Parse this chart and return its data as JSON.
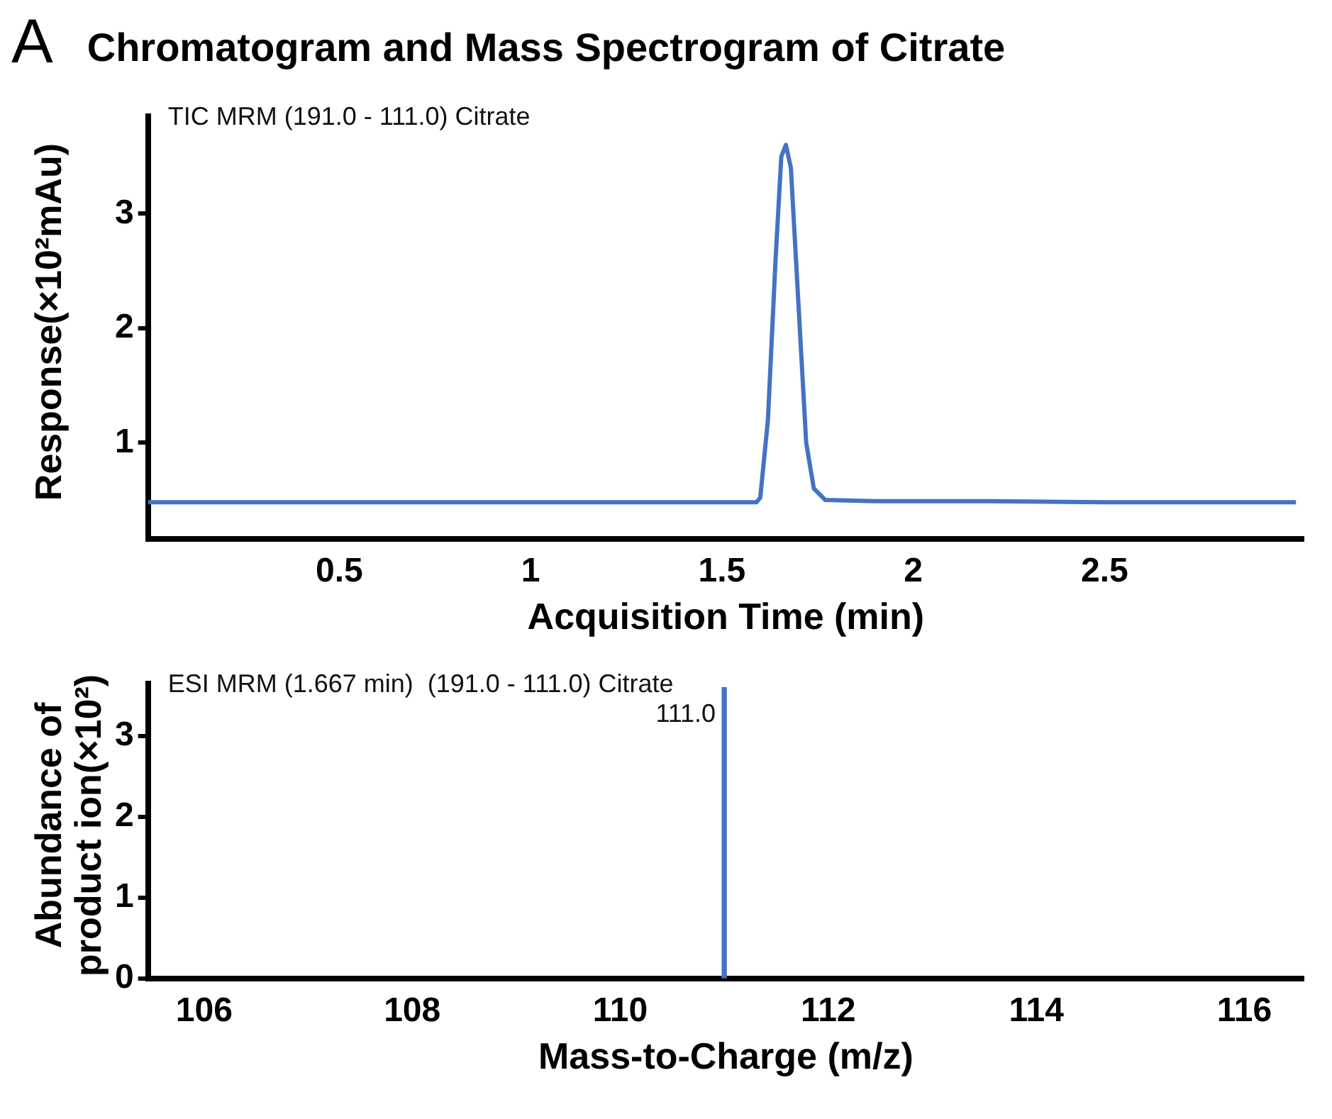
{
  "chart_data": [
    {
      "type": "line",
      "title": "Chromatogram and Mass Spectrogram of Citrate",
      "subtitle": "TIC MRM (191.0 - 111.0) Citrate",
      "annotations": [
        "A"
      ],
      "xlabel": "Acquisition Time (min)",
      "ylabel": "Response(×10²mAu)",
      "series": [
        {
          "color": "#4472c4",
          "x": [
            0,
            0.5,
            1,
            1.5,
            1.59,
            1.6,
            1.62,
            1.64,
            1.655,
            1.667,
            1.68,
            1.7,
            1.72,
            1.74,
            1.77,
            1.9,
            2.2,
            2.5,
            3.0
          ],
          "values": [
            0.48,
            0.48,
            0.48,
            0.48,
            0.48,
            0.52,
            1.2,
            2.6,
            3.5,
            3.6,
            3.4,
            2.2,
            1.0,
            0.6,
            0.5,
            0.49,
            0.49,
            0.48,
            0.48
          ]
        }
      ],
      "xlim": [
        0,
        3.02
      ],
      "xticks": [
        0.5,
        1,
        1.5,
        2,
        2.5
      ],
      "ylim": [
        0.16,
        3.85
      ],
      "yticks": [
        1,
        2,
        3
      ],
      "grid": false,
      "legend": false,
      "marker": "none",
      "line_style": "solid"
    },
    {
      "type": "bar",
      "subtitle": "ESI MRM (1.667 min)  (191.0 - 111.0) Citrate",
      "xlabel": "Mass-to-Charge (m/z)",
      "ylabel": "Abundance of product ion(×10²)",
      "x": [
        111
      ],
      "values": [
        3.6
      ],
      "color": "#4472c4",
      "annotations": [
        {
          "text": "111.0",
          "x": 111,
          "y": 3.6
        }
      ],
      "xlim": [
        105.46,
        116.57
      ],
      "xticks": [
        106,
        108,
        110,
        112,
        114,
        116
      ],
      "ylim": [
        0,
        3.65
      ],
      "yticks": [
        0,
        1,
        2,
        3
      ],
      "grid": false,
      "legend": false
    }
  ]
}
